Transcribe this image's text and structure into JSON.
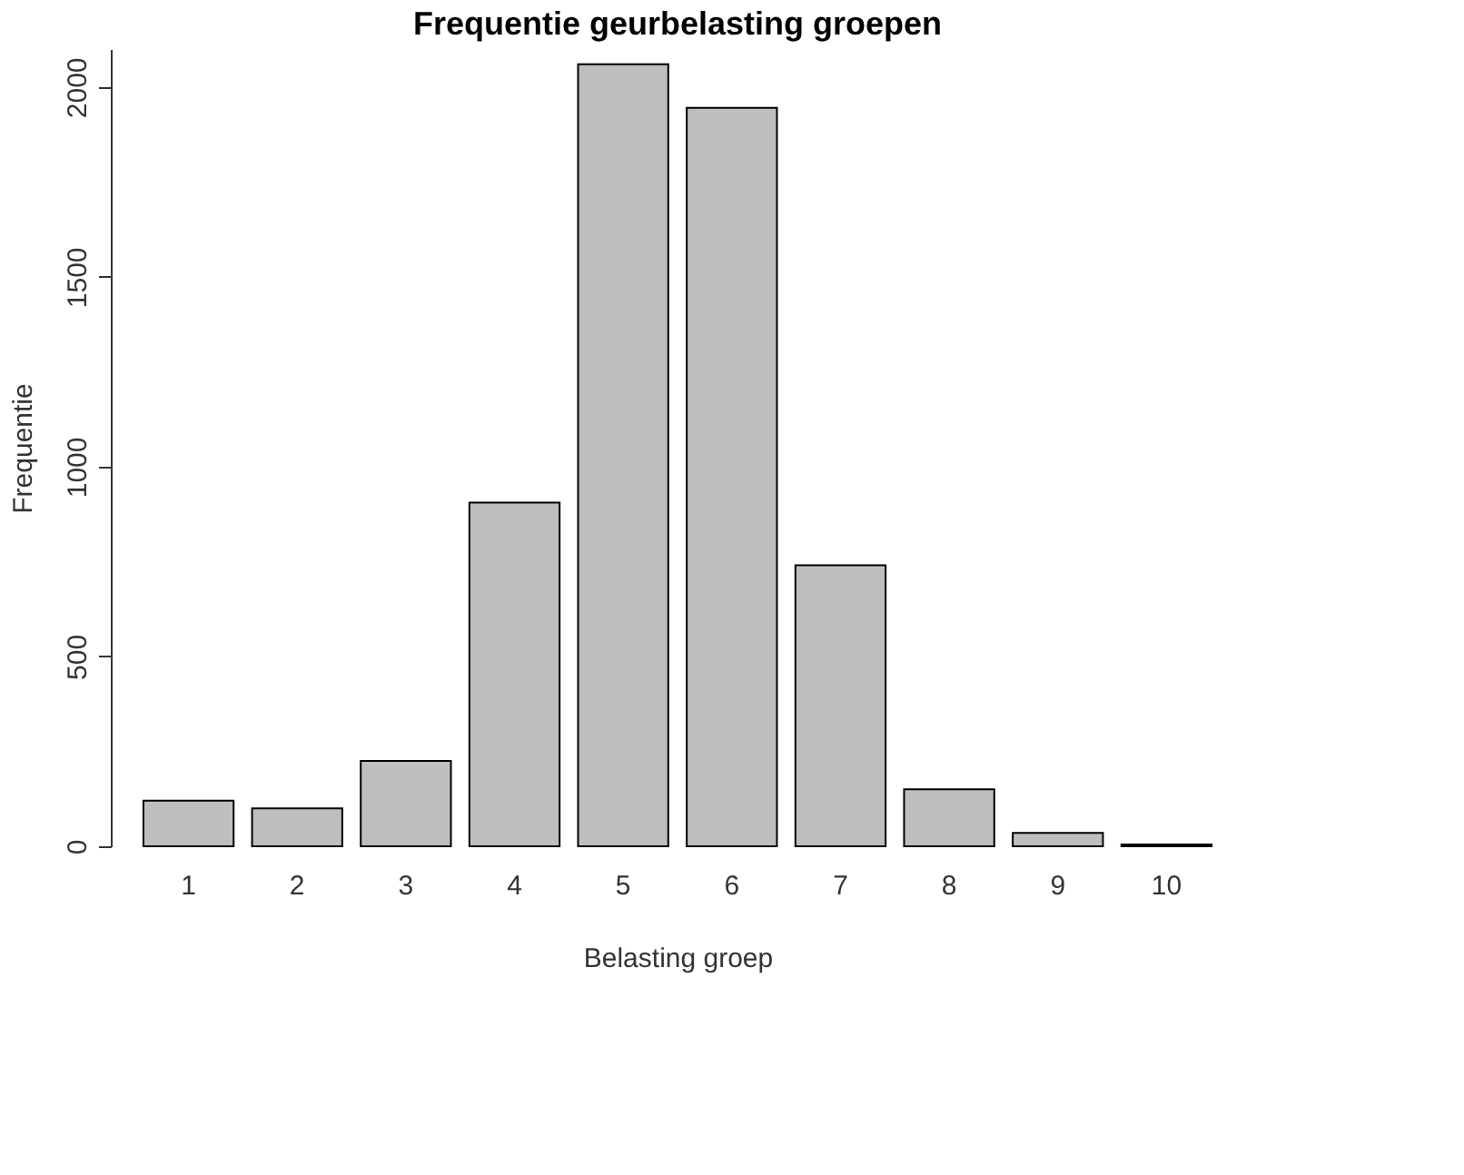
{
  "chart_data": {
    "type": "bar",
    "title": "Frequentie geurbelasting groepen",
    "xlabel": "Belasting groep",
    "ylabel": "Frequentie",
    "categories": [
      "1",
      "2",
      "3",
      "4",
      "5",
      "6",
      "7",
      "8",
      "9",
      "10"
    ],
    "values": [
      120,
      100,
      225,
      905,
      2060,
      1945,
      740,
      150,
      35,
      5
    ],
    "color": "#bebebe",
    "ylim": [
      0,
      2100
    ],
    "yticks": [
      0,
      500,
      1000,
      1500,
      2000
    ],
    "grid": false
  }
}
